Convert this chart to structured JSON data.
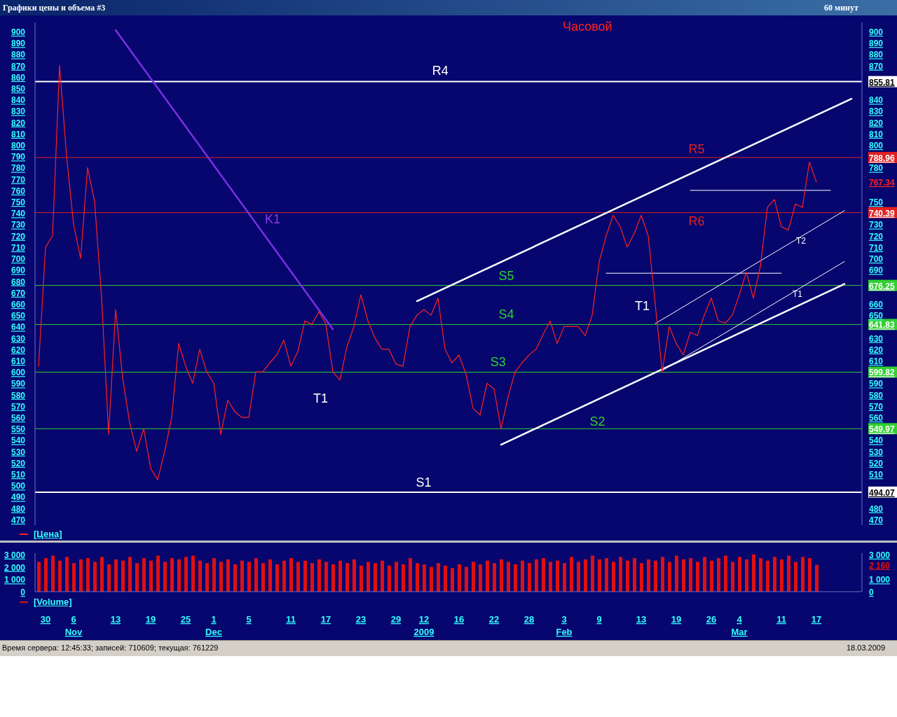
{
  "chart_data": [
    {
      "type": "line",
      "title": "Графики цены и объема #3",
      "subtitle": "60 минут",
      "ylim": [
        465,
        908
      ],
      "y2lim": [
        465,
        908
      ],
      "tick_labels": "y",
      "legend": "bottom left",
      "categories": [
        null,
        null,
        null,
        null,
        null,
        null,
        null,
        null,
        null,
        null,
        null,
        null,
        null,
        null,
        null,
        null,
        null,
        null,
        null,
        null,
        null,
        null,
        null,
        null,
        null,
        null,
        null,
        null,
        null,
        null,
        null,
        null,
        null,
        null,
        null,
        null,
        null,
        null,
        null,
        null,
        null,
        null,
        null,
        null,
        null,
        null,
        null,
        null,
        null,
        null,
        null,
        null,
        null,
        null,
        null,
        null,
        null,
        null,
        null,
        null,
        null,
        null,
        null,
        null,
        null,
        null,
        null,
        null,
        null,
        null,
        null,
        null,
        null,
        null,
        null,
        null,
        null,
        null,
        null,
        null,
        null,
        null,
        null,
        null,
        null,
        null,
        null,
        null,
        null,
        null,
        null,
        null,
        null,
        null,
        null,
        null,
        null,
        null,
        null,
        null,
        null,
        null,
        null,
        null,
        null,
        null,
        null,
        null,
        null,
        null,
        null,
        null,
        null,
        null,
        null,
        null,
        null,
        null
      ],
      "yticks": [
        470,
        480,
        490,
        500,
        510,
        520,
        530,
        540,
        550,
        560,
        570,
        580,
        590,
        600,
        610,
        620,
        630,
        640,
        650,
        660,
        670,
        680,
        690,
        700,
        710,
        720,
        730,
        740,
        750,
        760,
        770,
        780,
        790,
        800,
        810,
        820,
        830,
        840,
        850,
        860,
        870,
        880,
        890,
        900
      ],
      "y2ticks": [
        470,
        480,
        {
          "value": 494.07,
          "label": "494.07"
        },
        510,
        520,
        530,
        540,
        {
          "value": 549.97,
          "label": "549.97"
        },
        560,
        570,
        580,
        590,
        {
          "value": 599.82,
          "label": "599.82"
        },
        610,
        620,
        630,
        {
          "value": 641.83,
          "label": "641.83"
        },
        650,
        660,
        {
          "value": 676.25,
          "label": "676.25"
        },
        690,
        700,
        710,
        720,
        730,
        {
          "value": 740.39,
          "label": "740.39"
        },
        750,
        {
          "value": 767.34,
          "label": "767.34"
        },
        780,
        {
          "value": 788.96,
          "label": "788.96"
        },
        800,
        810,
        820,
        830,
        840,
        {
          "value": 855.81,
          "label": "855.81"
        },
        870,
        880,
        890,
        900
      ],
      "ref_lines": [
        {
          "axis": "y",
          "value": 855.81,
          "label": "R4",
          "color": "#ffffff"
        },
        {
          "axis": "y",
          "value": 788.96,
          "label": "R5",
          "color": "#e02020"
        },
        {
          "axis": "y",
          "value": 740.39,
          "label": "R6",
          "color": "#e02020"
        },
        {
          "axis": "y",
          "value": 676.25,
          "label": "S5",
          "color": "#30d030"
        },
        {
          "axis": "y",
          "value": 641.83,
          "label": "S4",
          "color": "#30d030"
        },
        {
          "axis": "y",
          "value": 599.82,
          "label": "S3",
          "color": "#30d030"
        },
        {
          "axis": "y",
          "value": 549.97,
          "label": "S2",
          "color": "#30d030"
        },
        {
          "axis": "y",
          "value": 494.07,
          "label": "S1",
          "color": "#ffffff"
        }
      ],
      "annotations": [
        "Часовой",
        "K1",
        "T1",
        "T1",
        "T2",
        "T1"
      ],
      "series": [
        {
          "name": "[Цена]",
          "color": "#ff2020",
          "values": [
            605,
            710,
            720,
            870,
            790,
            730,
            700,
            780,
            750,
            665,
            545,
            655,
            595,
            555,
            530,
            550,
            515,
            505,
            530,
            560,
            625,
            605,
            590,
            620,
            600,
            590,
            545,
            575,
            565,
            560,
            560,
            600,
            600,
            608,
            615,
            628,
            605,
            618,
            645,
            642,
            653,
            642,
            600,
            593,
            622,
            640,
            668,
            645,
            630,
            620,
            620,
            607,
            605,
            640,
            650,
            655,
            650,
            665,
            620,
            608,
            615,
            598,
            568,
            562,
            590,
            585,
            550,
            578,
            600,
            608,
            615,
            620,
            633,
            645,
            625,
            640,
            640,
            640,
            632,
            650,
            697,
            720,
            738,
            728,
            710,
            722,
            738,
            720,
            660,
            600,
            640,
            625,
            615,
            635,
            632,
            650,
            665,
            645,
            643,
            650,
            668,
            688,
            665,
            693,
            745,
            752,
            728,
            725,
            748,
            745,
            785,
            767.34,
            null,
            null,
            null,
            null,
            null,
            null
          ]
        },
        {
          "color": "#7a30e0",
          "values": [
            null,
            null,
            null,
            null,
            null,
            null,
            null,
            null,
            null,
            null,
            null,
            901.2,
            null,
            null,
            null,
            null,
            null,
            null,
            null,
            null,
            null,
            null,
            null,
            null,
            null,
            null,
            null,
            null,
            null,
            null,
            null,
            null,
            null,
            null,
            null,
            null,
            null,
            null,
            null,
            null,
            null,
            null,
            637.6,
            null,
            null,
            null,
            null,
            null,
            null,
            null,
            null,
            null,
            null,
            null,
            null,
            null,
            null,
            null,
            null,
            null,
            null,
            null,
            null,
            null,
            null,
            null,
            null,
            null,
            null,
            null,
            null,
            null,
            null,
            null,
            null,
            null,
            null,
            null,
            null,
            null,
            null,
            null,
            null,
            null,
            null,
            null,
            null,
            null,
            null,
            null,
            null,
            null,
            null,
            null,
            null,
            null,
            null,
            null,
            null,
            null,
            null,
            null,
            null,
            null,
            null,
            null,
            null,
            null,
            null,
            null,
            null,
            null,
            null,
            null,
            null,
            null,
            null,
            null
          ]
        },
        {
          "color": "#ffffff",
          "values": [
            null,
            null,
            null,
            null,
            null,
            null,
            null,
            null,
            null,
            null,
            null,
            null,
            null,
            null,
            null,
            null,
            null,
            null,
            null,
            null,
            null,
            null,
            null,
            null,
            null,
            null,
            null,
            null,
            null,
            null,
            null,
            null,
            null,
            null,
            null,
            null,
            null,
            null,
            null,
            null,
            null,
            null,
            null,
            null,
            null,
            null,
            null,
            null,
            null,
            null,
            null,
            null,
            null,
            null,
            662.4,
            null,
            null,
            null,
            null,
            null,
            null,
            null,
            null,
            null,
            null,
            null,
            null,
            null,
            null,
            null,
            null,
            null,
            null,
            null,
            null,
            null,
            null,
            null,
            null,
            null,
            null,
            null,
            null,
            null,
            null,
            null,
            null,
            null,
            null,
            null,
            null,
            null,
            null,
            null,
            null,
            null,
            null,
            null,
            null,
            null,
            null,
            null,
            null,
            null,
            null,
            null,
            null,
            null,
            null,
            null,
            null,
            null,
            null,
            null,
            null,
            null,
            840.7,
            null
          ]
        },
        {
          "color": "#ffffff",
          "values": [
            null,
            null,
            null,
            null,
            null,
            null,
            null,
            null,
            null,
            null,
            null,
            null,
            null,
            null,
            null,
            null,
            null,
            null,
            null,
            null,
            null,
            null,
            null,
            null,
            null,
            null,
            null,
            null,
            null,
            null,
            null,
            null,
            null,
            null,
            null,
            null,
            null,
            null,
            null,
            null,
            null,
            null,
            null,
            null,
            null,
            null,
            null,
            null,
            null,
            null,
            null,
            null,
            null,
            null,
            null,
            null,
            null,
            null,
            null,
            null,
            null,
            null,
            null,
            null,
            null,
            null,
            535.9,
            null,
            null,
            null,
            null,
            null,
            null,
            null,
            null,
            null,
            null,
            null,
            null,
            null,
            null,
            null,
            null,
            null,
            null,
            null,
            null,
            null,
            null,
            null,
            null,
            null,
            null,
            null,
            null,
            null,
            null,
            null,
            null,
            null,
            null,
            null,
            null,
            null,
            null,
            null,
            null,
            null,
            null,
            null,
            null,
            null,
            null,
            null,
            null,
            677.5,
            null,
            null
          ]
        },
        {
          "color": "#ffffff",
          "values": [
            null,
            null,
            null,
            null,
            null,
            null,
            null,
            null,
            null,
            null,
            null,
            null,
            null,
            null,
            null,
            null,
            null,
            null,
            null,
            null,
            null,
            null,
            null,
            null,
            null,
            null,
            null,
            null,
            null,
            null,
            null,
            null,
            null,
            null,
            null,
            null,
            null,
            null,
            null,
            null,
            null,
            null,
            null,
            null,
            null,
            null,
            null,
            null,
            null,
            null,
            null,
            null,
            null,
            null,
            null,
            null,
            null,
            null,
            null,
            null,
            null,
            null,
            null,
            null,
            null,
            null,
            null,
            null,
            null,
            null,
            null,
            null,
            null,
            null,
            null,
            null,
            null,
            null,
            null,
            null,
            null,
            null,
            null,
            null,
            null,
            null,
            null,
            null,
            642.6,
            null,
            null,
            null,
            null,
            null,
            null,
            null,
            null,
            null,
            null,
            null,
            null,
            null,
            null,
            null,
            null,
            null,
            null,
            null,
            null,
            null,
            null,
            null,
            null,
            null,
            null,
            742.1,
            null,
            null
          ]
        },
        {
          "color": "#ffffff",
          "values": [
            null,
            null,
            null,
            null,
            null,
            null,
            null,
            null,
            null,
            null,
            null,
            null,
            null,
            null,
            null,
            null,
            null,
            null,
            null,
            null,
            null,
            null,
            null,
            null,
            null,
            null,
            null,
            null,
            null,
            null,
            null,
            null,
            null,
            null,
            null,
            null,
            null,
            null,
            null,
            null,
            null,
            null,
            null,
            null,
            null,
            null,
            null,
            null,
            null,
            null,
            null,
            null,
            null,
            null,
            null,
            null,
            null,
            null,
            null,
            null,
            null,
            null,
            null,
            null,
            null,
            null,
            null,
            null,
            null,
            null,
            null,
            null,
            null,
            null,
            null,
            null,
            null,
            null,
            null,
            null,
            null,
            null,
            null,
            null,
            null,
            null,
            null,
            null,
            null,
            601.2,
            null,
            null,
            null,
            null,
            null,
            null,
            null,
            null,
            null,
            null,
            null,
            null,
            null,
            null,
            null,
            null,
            null,
            null,
            null,
            null,
            null,
            null,
            null,
            null,
            null,
            697.3,
            null,
            null
          ]
        },
        {
          "color": "#ffffff",
          "values": [
            null,
            null,
            null,
            null,
            null,
            null,
            null,
            null,
            null,
            null,
            null,
            null,
            null,
            null,
            null,
            null,
            null,
            null,
            null,
            null,
            null,
            null,
            null,
            null,
            null,
            null,
            null,
            null,
            null,
            null,
            null,
            null,
            null,
            null,
            null,
            null,
            null,
            null,
            null,
            null,
            null,
            null,
            null,
            null,
            null,
            null,
            null,
            null,
            null,
            null,
            null,
            null,
            null,
            null,
            null,
            null,
            null,
            null,
            null,
            null,
            null,
            null,
            null,
            null,
            null,
            null,
            null,
            null,
            null,
            null,
            null,
            null,
            null,
            null,
            null,
            null,
            null,
            null,
            null,
            null,
            null,
            687,
            null,
            null,
            null,
            null,
            null,
            null,
            null,
            null,
            null,
            null,
            null,
            null,
            null,
            null,
            null,
            null,
            null,
            null,
            null,
            null,
            null,
            null,
            null,
            null,
            687,
            null,
            null,
            null,
            null,
            null,
            null,
            null,
            null,
            null,
            null,
            null
          ]
        },
        {
          "color": "#ffffff",
          "values": [
            null,
            null,
            null,
            null,
            null,
            null,
            null,
            null,
            null,
            null,
            null,
            null,
            null,
            null,
            null,
            null,
            null,
            null,
            null,
            null,
            null,
            null,
            null,
            null,
            null,
            null,
            null,
            null,
            null,
            null,
            null,
            null,
            null,
            null,
            null,
            null,
            null,
            null,
            null,
            null,
            null,
            null,
            null,
            null,
            null,
            null,
            null,
            null,
            null,
            null,
            null,
            null,
            null,
            null,
            null,
            null,
            null,
            null,
            null,
            null,
            null,
            null,
            null,
            null,
            null,
            null,
            null,
            null,
            null,
            null,
            null,
            null,
            null,
            null,
            null,
            null,
            null,
            null,
            null,
            null,
            null,
            null,
            null,
            null,
            null,
            null,
            null,
            null,
            null,
            null,
            null,
            null,
            null,
            760,
            null,
            null,
            null,
            null,
            null,
            null,
            null,
            null,
            null,
            null,
            null,
            null,
            null,
            null,
            null,
            null,
            null,
            null,
            null,
            760,
            null,
            null,
            null,
            null
          ]
        }
      ]
    },
    {
      "type": "bar",
      "ylim": [
        0,
        3100
      ],
      "y2lim": [
        0,
        3100
      ],
      "legend": "bottom left",
      "categories": [
        null,
        "30",
        null,
        null,
        null,
        "6\nNov",
        null,
        null,
        null,
        null,
        null,
        "13",
        null,
        null,
        null,
        null,
        "19",
        null,
        null,
        null,
        null,
        "25",
        null,
        null,
        null,
        "1\nDec",
        null,
        null,
        null,
        null,
        "5",
        null,
        null,
        null,
        null,
        null,
        "11",
        null,
        null,
        null,
        null,
        "17",
        null,
        null,
        null,
        null,
        "23",
        null,
        null,
        null,
        null,
        "29",
        null,
        null,
        null,
        "12\n2009",
        null,
        null,
        null,
        null,
        "16",
        null,
        null,
        null,
        null,
        "22",
        null,
        null,
        null,
        null,
        "28",
        null,
        null,
        null,
        null,
        "3\nFeb",
        null,
        null,
        null,
        null,
        "9",
        null,
        null,
        null,
        null,
        null,
        "13",
        null,
        null,
        null,
        null,
        "19",
        null,
        null,
        null,
        null,
        "26",
        null,
        null,
        null,
        "4\nMar",
        null,
        null,
        null,
        null,
        null,
        "11",
        null,
        null,
        null,
        null,
        "17",
        null,
        null,
        null,
        null,
        null,
        null
      ],
      "yticks": [
        {
          "value": 0,
          "label": "0"
        },
        {
          "value": 1000,
          "label": "1 000"
        },
        {
          "value": 2000,
          "label": "2 000"
        },
        {
          "value": 3000,
          "label": "3 000"
        }
      ],
      "y2ticks": [
        {
          "value": 0,
          "label": "0"
        },
        {
          "value": 1000,
          "label": "1 000"
        },
        {
          "value": 2160,
          "label": "2 160"
        },
        {
          "value": 3000,
          "label": "3 000"
        }
      ],
      "annotations": [
        "Время сервера: 12:45:33; записей: 710609; текущая: 761229",
        "18.03.2009"
      ],
      "series": [
        {
          "name": "[Volume]",
          "color": "#e01010",
          "values": [
            2400,
            2700,
            2900,
            2500,
            2800,
            2300,
            2600,
            2700,
            2400,
            2800,
            2200,
            2600,
            2500,
            2800,
            2300,
            2700,
            2500,
            2900,
            2400,
            2700,
            2600,
            2800,
            2900,
            2500,
            2300,
            2700,
            2400,
            2600,
            2200,
            2500,
            2400,
            2700,
            2300,
            2600,
            2200,
            2500,
            2700,
            2400,
            2500,
            2300,
            2600,
            2400,
            2200,
            2500,
            2300,
            2600,
            2100,
            2400,
            2300,
            2500,
            2100,
            2400,
            2200,
            2700,
            2300,
            2200,
            2000,
            2300,
            2100,
            1900,
            2200,
            2000,
            2400,
            2200,
            2500,
            2300,
            2600,
            2400,
            2200,
            2500,
            2300,
            2600,
            2700,
            2400,
            2500,
            2300,
            2800,
            2400,
            2600,
            2900,
            2600,
            2700,
            2400,
            2800,
            2500,
            2700,
            2300,
            2600,
            2500,
            2800,
            2400,
            2900,
            2600,
            2700,
            2400,
            2800,
            2500,
            2700,
            2900,
            2400,
            2800,
            2600,
            3000,
            2700,
            2500,
            2800,
            2600,
            2900,
            2400,
            2800,
            2700,
            2160,
            null,
            null,
            null,
            null,
            null,
            null
          ]
        }
      ]
    }
  ]
}
